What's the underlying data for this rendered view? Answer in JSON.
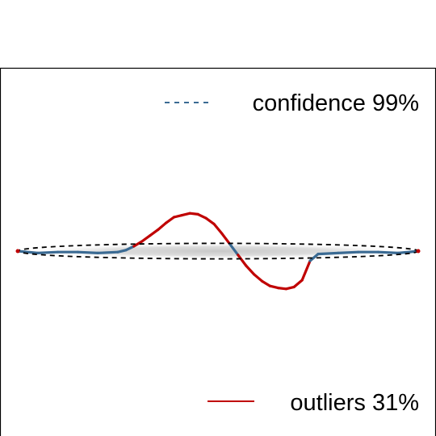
{
  "chart_data": {
    "type": "line",
    "title": "",
    "xlabel": "",
    "ylabel": "",
    "xlim": [
      0,
      1
    ],
    "ylim": [
      -1,
      1
    ],
    "grid": false,
    "axes_visible": false,
    "legend": [
      {
        "label": "confidence 99%",
        "style": "dashed",
        "color": "#3a6a93",
        "placement": "top-right"
      },
      {
        "label": "outliers 31%",
        "style": "solid",
        "color": "#c00000",
        "placement": "bottom-right"
      }
    ],
    "confidence_ellipse": {
      "center": [
        0.5,
        0.0
      ],
      "semi_axes": [
        0.5,
        0.08
      ],
      "style": "dashed",
      "color": "#000000"
    },
    "series": [
      {
        "x": [
          0.0,
          0.05,
          0.1,
          0.15,
          0.2,
          0.25,
          0.27,
          0.29,
          0.31,
          0.33,
          0.35,
          0.37,
          0.39,
          0.41,
          0.43,
          0.45,
          0.47,
          0.49,
          0.51,
          0.53,
          0.55,
          0.57,
          0.59,
          0.61,
          0.63,
          0.65,
          0.67,
          0.69,
          0.71,
          0.73,
          0.75,
          0.8,
          0.85,
          0.9,
          0.95,
          1.0
        ],
        "y": [
          0.0,
          -0.02,
          -0.01,
          -0.01,
          -0.02,
          -0.01,
          0.01,
          0.05,
          0.1,
          0.16,
          0.22,
          0.29,
          0.35,
          0.37,
          0.39,
          0.38,
          0.34,
          0.28,
          0.18,
          0.07,
          -0.04,
          -0.15,
          -0.24,
          -0.31,
          -0.36,
          -0.38,
          -0.39,
          -0.37,
          -0.3,
          -0.1,
          -0.03,
          -0.02,
          -0.01,
          -0.01,
          -0.02,
          0.0
        ],
        "color_inside": "#3a6a93",
        "color_outside": "#c00000"
      }
    ]
  }
}
